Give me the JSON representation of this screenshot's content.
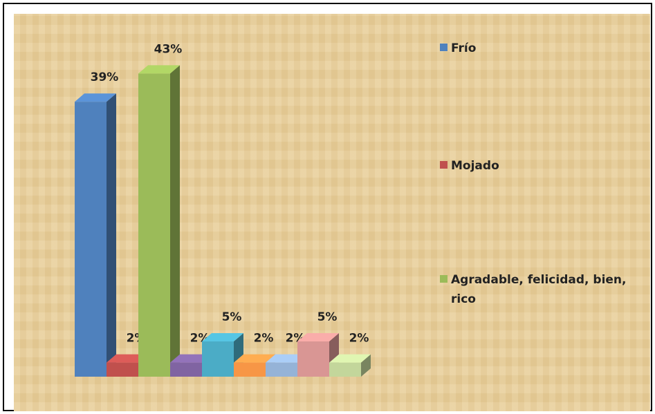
{
  "chart_data": {
    "type": "bar3d",
    "series": [
      {
        "name": "Frío",
        "color": "#4f81bd",
        "values": [
          39
        ],
        "value_labels": [
          "39%"
        ]
      },
      {
        "name": "Mojado",
        "color": "#c0504d",
        "values": [
          2
        ],
        "value_labels": [
          "2%"
        ]
      },
      {
        "name": "Agradable, felicidad, bien, rico",
        "color": "#9bbb59",
        "values": [
          43
        ],
        "value_labels": [
          "43%"
        ]
      },
      {
        "color": "#8064a2",
        "values": [
          2
        ],
        "value_labels": [
          "2%"
        ]
      },
      {
        "color": "#4bacc6",
        "values": [
          5
        ],
        "value_labels": [
          "5%"
        ]
      },
      {
        "color": "#f79646",
        "values": [
          2
        ],
        "value_labels": [
          "2%"
        ]
      },
      {
        "color": "#95b3d7",
        "values": [
          2
        ],
        "value_labels": [
          "2%"
        ]
      },
      {
        "color": "#d99694",
        "values": [
          5
        ],
        "value_labels": [
          "5%"
        ]
      },
      {
        "color": "#c3d69b",
        "values": [
          2
        ],
        "value_labels": [
          "2%"
        ]
      }
    ]
  }
}
